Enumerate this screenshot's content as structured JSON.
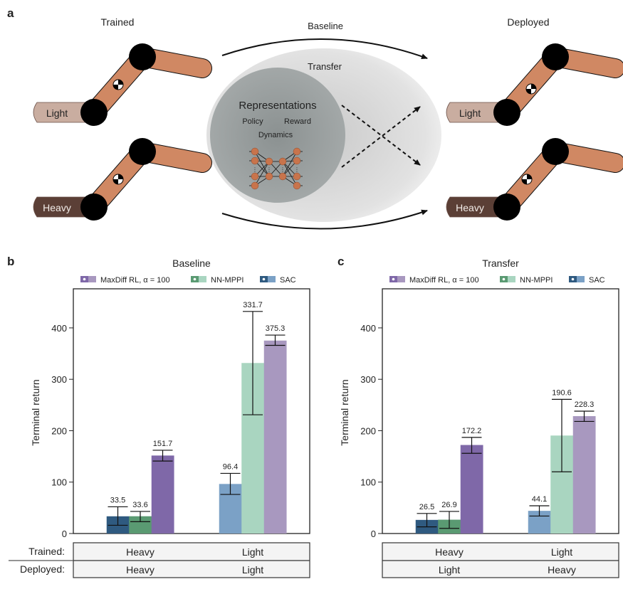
{
  "panels": {
    "a": "a",
    "b": "b",
    "c": "c"
  },
  "diagram": {
    "trained_title": "Trained",
    "deployed_title": "Deployed",
    "baseline_label": "Baseline",
    "transfer_label": "Transfer",
    "representations_label": "Representations",
    "policy_label": "Policy",
    "reward_label": "Reward",
    "dynamics_label": "Dynamics",
    "light_label": "Light",
    "heavy_label": "Heavy",
    "colors": {
      "arm": "#d08863",
      "light_base": "#c9ada0",
      "heavy_base": "#5b3f36",
      "ellipse": "#dcdcdc",
      "inner_circle": "#9aa0a0"
    }
  },
  "table_labels": {
    "trained": "Trained:",
    "deployed": "Deployed:"
  },
  "chart_data": [
    {
      "type": "bar",
      "title": "Baseline",
      "ylabel": "Terminal return",
      "xlabel": "",
      "ylim": [
        0,
        476
      ],
      "yticks": [
        0,
        100,
        200,
        300,
        400
      ],
      "grid": false,
      "legend_position": "top",
      "categories": [
        {
          "trained": "Heavy",
          "deployed": "Heavy"
        },
        {
          "trained": "Light",
          "deployed": "Light"
        }
      ],
      "series": [
        {
          "name": "SAC",
          "values": [
            33.5,
            96.4
          ],
          "error_low": [
            16,
            76
          ],
          "error_high": [
            52,
            117
          ],
          "labels": [
            "33.5",
            "96.4"
          ],
          "colors": [
            "#2f5a80",
            "#7ba1c6"
          ]
        },
        {
          "name": "NN-MPPI",
          "values": [
            33.6,
            331.7
          ],
          "error_low": [
            23,
            231
          ],
          "error_high": [
            43,
            432
          ],
          "labels": [
            "33.6",
            "331.7"
          ],
          "colors": [
            "#5a9a72",
            "#a9d5c0"
          ]
        },
        {
          "name": "MaxDiff RL, α = 100",
          "values": [
            151.7,
            375.3
          ],
          "error_low": [
            141,
            366
          ],
          "error_high": [
            162,
            386
          ],
          "labels": [
            "151.7",
            "375.3"
          ],
          "colors": [
            "#7f68a8",
            "#a898bf"
          ]
        }
      ],
      "legend_order": [
        2,
        1,
        0
      ]
    },
    {
      "type": "bar",
      "title": "Transfer",
      "ylabel": "Terminal return",
      "xlabel": "",
      "ylim": [
        0,
        476
      ],
      "yticks": [
        0,
        100,
        200,
        300,
        400
      ],
      "grid": false,
      "legend_position": "top",
      "categories": [
        {
          "trained": "Heavy",
          "deployed": "Light"
        },
        {
          "trained": "Light",
          "deployed": "Heavy"
        }
      ],
      "series": [
        {
          "name": "SAC",
          "values": [
            26.5,
            44.1
          ],
          "error_low": [
            13,
            34
          ],
          "error_high": [
            39,
            54
          ],
          "labels": [
            "26.5",
            "44.1"
          ],
          "colors": [
            "#2f5a80",
            "#7ba1c6"
          ]
        },
        {
          "name": "NN-MPPI",
          "values": [
            26.9,
            190.6
          ],
          "error_low": [
            10,
            120
          ],
          "error_high": [
            43,
            261
          ],
          "labels": [
            "26.9",
            "190.6"
          ],
          "colors": [
            "#5a9a72",
            "#a9d5c0"
          ]
        },
        {
          "name": "MaxDiff RL, α = 100",
          "values": [
            172.2,
            228.3
          ],
          "error_low": [
            156,
            218
          ],
          "error_high": [
            187,
            238
          ],
          "labels": [
            "172.2",
            "228.3"
          ],
          "colors": [
            "#7f68a8",
            "#a898bf"
          ]
        }
      ],
      "legend_order": [
        2,
        1,
        0
      ]
    }
  ]
}
